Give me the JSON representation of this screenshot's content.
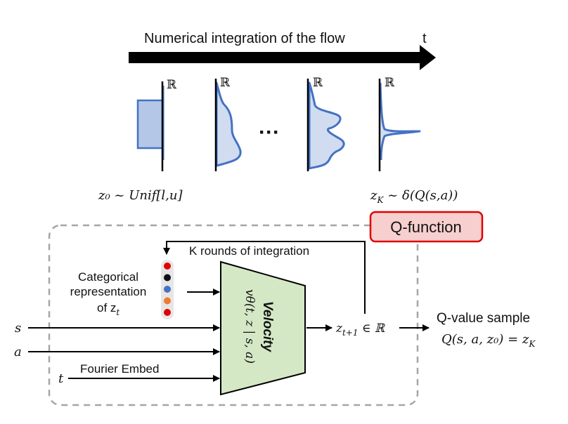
{
  "top": {
    "title": "Numerical integration of the flow",
    "time_label": "t",
    "real_symbol": "ℝ",
    "ellipsis": "···",
    "z0_label": "z₀ ~ Unif[l,u]",
    "zk_label": "z",
    "zk_sub": "K",
    "zk_rest": " ~ δ(Q(s,a))"
  },
  "qfunction": {
    "label": "Q-function"
  },
  "loop": {
    "label": "K rounds of integration"
  },
  "categorical": {
    "line1": "Categorical",
    "line2": "representation",
    "line3": "of z",
    "line3_sub": "t",
    "dot_colors": [
      "#e00000",
      "#111111",
      "#4472c4",
      "#ed7d31",
      "#e00000"
    ]
  },
  "velocity": {
    "title": "Velocity",
    "formula": "vθ(t, z | s, a)"
  },
  "inputs": {
    "s": "s",
    "a": "a",
    "t": "t",
    "fourier": "Fourier Embed"
  },
  "output": {
    "z_next": "z",
    "z_next_sub": "t+1",
    "z_next_rest": " ∈ ℝ",
    "sample_title": "Q-value sample",
    "sample_formula": "Q(s, a, z₀) = z",
    "sample_sub": "K"
  },
  "colors": {
    "qfunction_border": "#e00000",
    "qfunction_fill": "#f8cfcf",
    "velocity_fill": "#d5e8c6",
    "dist_stroke": "#4472c4",
    "dist_fill": "#d2dcf0",
    "dashed_border": "#a6a6a6"
  }
}
